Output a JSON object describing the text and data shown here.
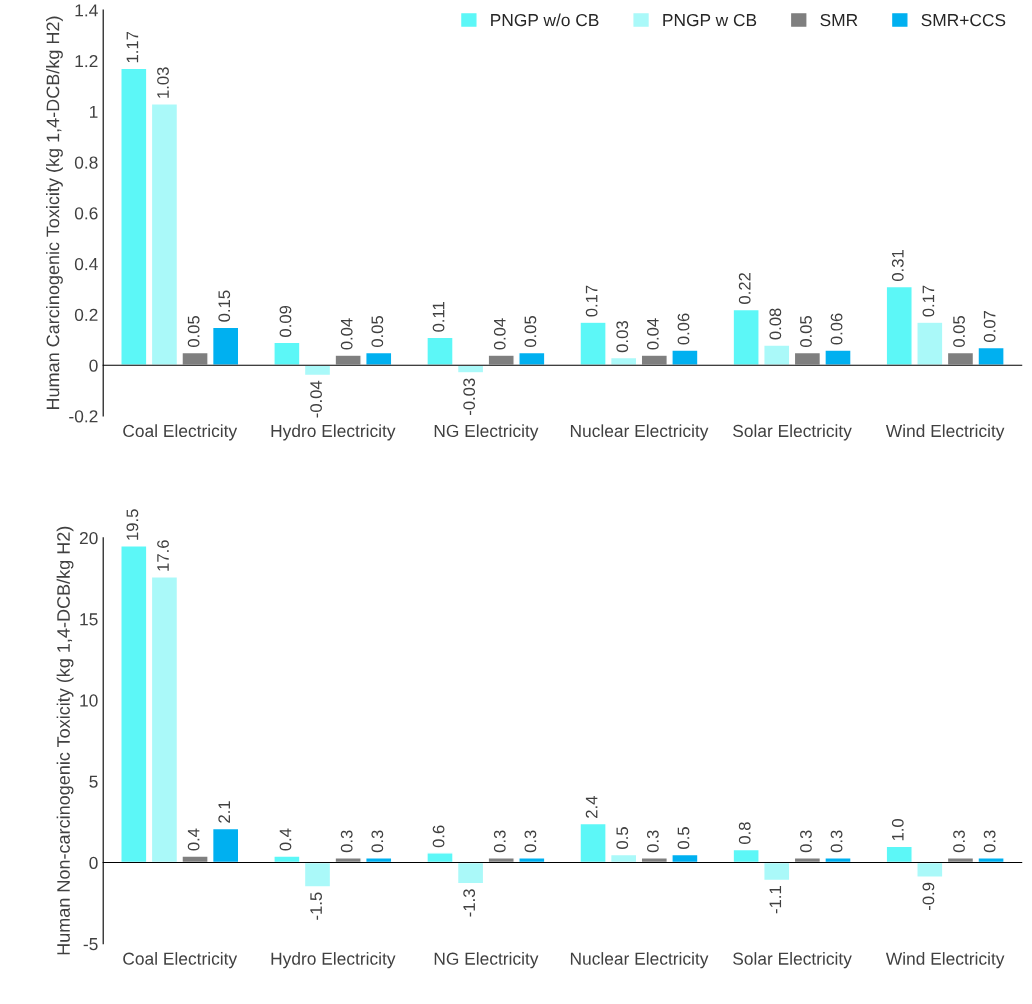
{
  "chart_data": [
    {
      "type": "bar",
      "ylabel": "Human Carcinogenic Toxicity (kg 1,4-DCB/kg H2)",
      "categories": [
        "Coal Electricity",
        "Hydro Electricity",
        "NG Electricity",
        "Nuclear Electricity",
        "Solar Electricity",
        "Wind Electricity"
      ],
      "series": [
        {
          "name": "PNGP w/o CB",
          "color": "#5cf7f7",
          "values": [
            1.17,
            0.09,
            0.11,
            0.17,
            0.22,
            0.31
          ],
          "value_labels": [
            "1.17",
            "0.09",
            "0.11",
            "0.17",
            "0.22",
            "0.31"
          ]
        },
        {
          "name": "PNGP w CB",
          "color": "#aaf9f9",
          "values": [
            1.03,
            -0.04,
            -0.03,
            0.03,
            0.08,
            0.17
          ],
          "value_labels": [
            "1.03",
            "-0.04",
            "-0.03",
            "0.03",
            "0.08",
            "0.17"
          ]
        },
        {
          "name": "SMR",
          "color": "#7f7f7f",
          "values": [
            0.05,
            0.04,
            0.04,
            0.04,
            0.05,
            0.05
          ],
          "value_labels": [
            "0.05",
            "0.04",
            "0.04",
            "0.04",
            "0.05",
            "0.05"
          ]
        },
        {
          "name": "SMR+CCS",
          "color": "#00b0f0",
          "values": [
            0.15,
            0.05,
            0.05,
            0.06,
            0.06,
            0.07
          ],
          "value_labels": [
            "0.15",
            "0.05",
            "0.05",
            "0.06",
            "0.06",
            "0.07"
          ]
        }
      ],
      "ylim": [
        -0.2,
        1.4
      ],
      "yticks": [
        -0.2,
        0,
        0.2,
        0.4,
        0.6,
        0.8,
        1,
        1.2,
        1.4
      ],
      "legend": "top right"
    },
    {
      "type": "bar",
      "ylabel": "Human Non-carcinogenic Toxicity (kg 1,4-DCB/kg H2)",
      "categories": [
        "Coal Electricity",
        "Hydro Electricity",
        "NG Electricity",
        "Nuclear Electricity",
        "Solar Electricity",
        "Wind Electricity"
      ],
      "series": [
        {
          "color": "#5cf7f7",
          "values": [
            19.5,
            0.4,
            0.6,
            2.4,
            0.8,
            1.0
          ],
          "value_labels": [
            "19.5",
            "0.4",
            "0.6",
            "2.4",
            "0.8",
            "1.0"
          ]
        },
        {
          "color": "#aaf9f9",
          "values": [
            17.6,
            -1.5,
            -1.3,
            0.5,
            -1.1,
            -0.9
          ],
          "value_labels": [
            "17.6",
            "-1.5",
            "-1.3",
            "0.5",
            "-1.1",
            "-0.9"
          ]
        },
        {
          "color": "#7f7f7f",
          "values": [
            0.4,
            0.3,
            0.3,
            0.3,
            0.3,
            0.3
          ],
          "value_labels": [
            "0.4",
            "0.3",
            "0.3",
            "0.3",
            "0.3",
            "0.3"
          ]
        },
        {
          "color": "#00b0f0",
          "values": [
            2.1,
            0.3,
            0.3,
            0.5,
            0.3,
            0.3
          ],
          "value_labels": [
            "2.1",
            "0.3",
            "0.3",
            "0.5",
            "0.3",
            "0.3"
          ]
        }
      ],
      "ylim": [
        -5,
        20
      ],
      "yticks": [
        -5,
        0,
        5,
        10,
        15,
        20
      ]
    }
  ]
}
